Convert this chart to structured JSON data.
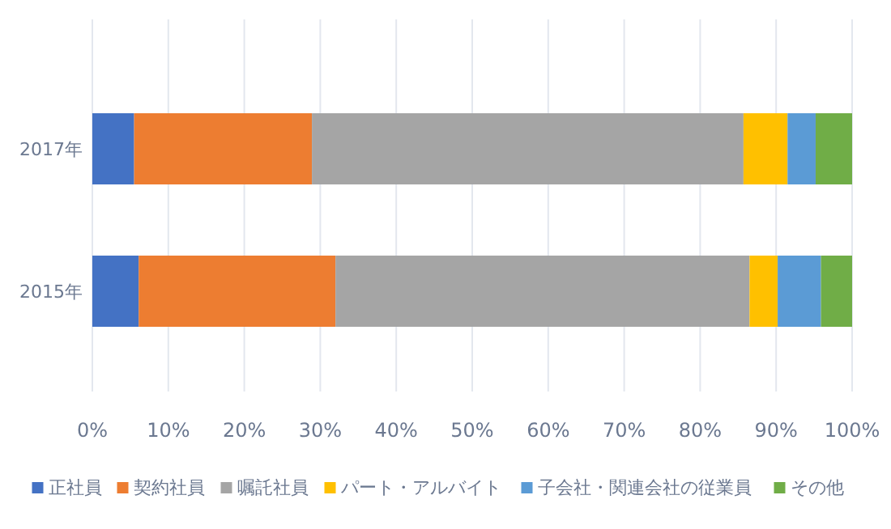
{
  "chart_data": {
    "type": "bar",
    "orientation": "horizontal",
    "stacked": true,
    "categories": [
      "2017年",
      "2015年"
    ],
    "series": [
      {
        "name": "正社員",
        "color": "#4472c4",
        "values": [
          5.5,
          6.1
        ]
      },
      {
        "name": "契約社員",
        "color": "#ed7d31",
        "values": [
          23.4,
          25.9
        ]
      },
      {
        "name": "嘱託社員",
        "color": "#a5a5a5",
        "values": [
          56.8,
          54.5
        ]
      },
      {
        "name": "パート・アルバイト",
        "color": "#ffc000",
        "values": [
          5.8,
          3.7
        ]
      },
      {
        "name": "子会社・関連会社の従業員",
        "color": "#5b9bd5",
        "values": [
          3.7,
          5.7
        ]
      },
      {
        "name": "その他",
        "color": "#70ad47",
        "values": [
          4.8,
          4.1
        ]
      }
    ],
    "xlim": [
      0,
      100
    ],
    "xticks": [
      {
        "value": 0,
        "label": "0%"
      },
      {
        "value": 10,
        "label": "10%"
      },
      {
        "value": 20,
        "label": "20%"
      },
      {
        "value": 30,
        "label": "30%"
      },
      {
        "value": 40,
        "label": "40%"
      },
      {
        "value": 50,
        "label": "50%"
      },
      {
        "value": 60,
        "label": "60%"
      },
      {
        "value": 70,
        "label": "70%"
      },
      {
        "value": 80,
        "label": "80%"
      },
      {
        "value": 90,
        "label": "90%"
      },
      {
        "value": 100,
        "label": "100%"
      }
    ],
    "grid": "x",
    "legend": "bottom"
  }
}
